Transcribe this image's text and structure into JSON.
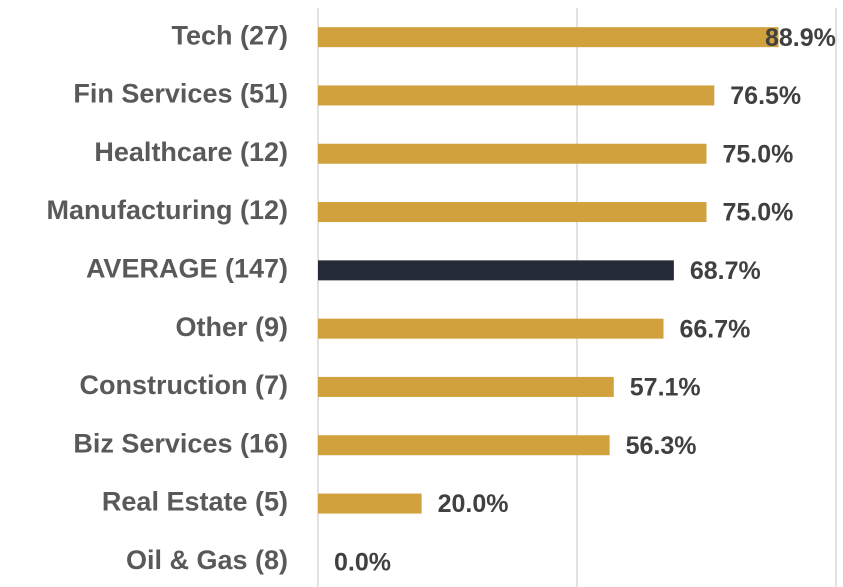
{
  "chart_data": {
    "type": "bar",
    "orientation": "horizontal",
    "categories": [
      "Tech (27)",
      "Fin Services (51)",
      "Healthcare (12)",
      "Manufacturing (12)",
      "AVERAGE (147)",
      "Other (9)",
      "Construction (7)",
      "Biz Services (16)",
      "Real Estate (5)",
      "Oil & Gas (8)"
    ],
    "values": [
      88.9,
      76.5,
      75.0,
      75.0,
      68.7,
      66.7,
      57.1,
      56.3,
      20.0,
      0.0
    ],
    "value_labels": [
      "88.9%",
      "76.5%",
      "75.0%",
      "75.0%",
      "68.7%",
      "66.7%",
      "57.1%",
      "56.3%",
      "20.0%",
      "0.0%"
    ],
    "colors": [
      "#d1a13d",
      "#d1a13d",
      "#d1a13d",
      "#d1a13d",
      "#262b38",
      "#d1a13d",
      "#d1a13d",
      "#d1a13d",
      "#d1a13d",
      "#d1a13d"
    ],
    "xlim": [
      0,
      100
    ],
    "xticks": [
      0,
      50,
      100
    ],
    "grid": true
  }
}
